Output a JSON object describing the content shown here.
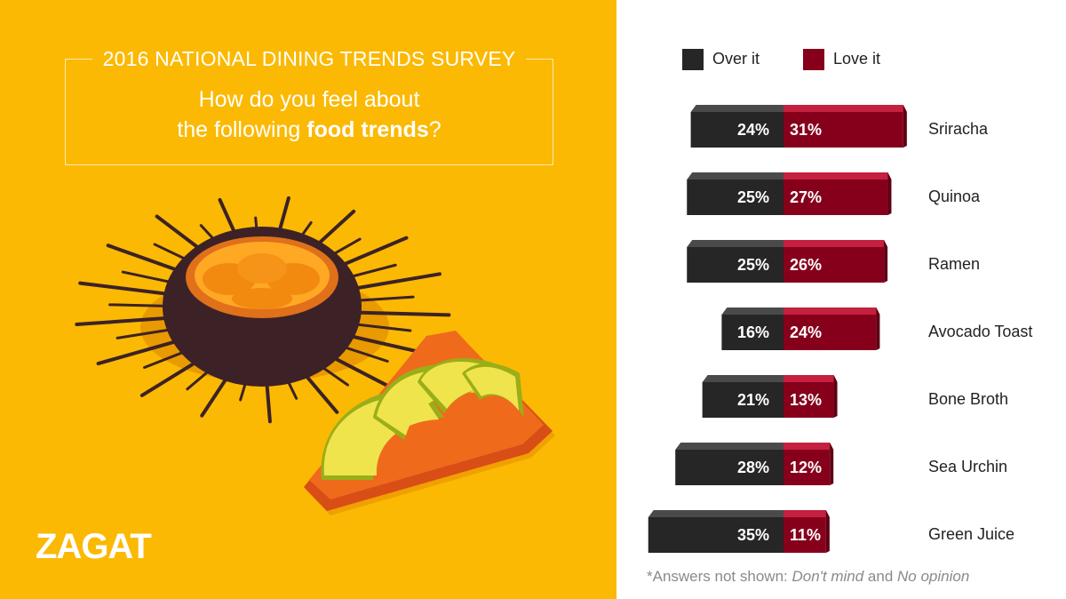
{
  "header": {
    "survey_title": "2016 NATIONAL DINING TRENDS SURVEY",
    "question_part1": "How do you feel about",
    "question_part2": "the following ",
    "question_bold": "food trends",
    "question_end": "?"
  },
  "logo": {
    "text": "ZAGAT"
  },
  "illustration": {
    "icons": [
      "sea-urchin-icon",
      "avocado-toast-icon"
    ]
  },
  "colors": {
    "background_left": "#fbb903",
    "over_it": "#262626",
    "over_it_top": "#4a4a4a",
    "love_it": "#86001c",
    "love_it_top": "#c4203f",
    "text_light": "#ffffff"
  },
  "chart_data": {
    "type": "bar",
    "orientation": "horizontal-diverging",
    "categories": [
      "Sriracha",
      "Quinoa",
      "Ramen",
      "Avocado Toast",
      "Bone Broth",
      "Sea Urchin",
      "Green Juice"
    ],
    "series": [
      {
        "name": "Over it",
        "values": [
          24,
          25,
          25,
          16,
          21,
          28,
          35
        ]
      },
      {
        "name": "Love it",
        "values": [
          31,
          27,
          26,
          24,
          13,
          12,
          11
        ]
      }
    ],
    "value_labels": {
      "over_it": [
        "24%",
        "25%",
        "25%",
        "16%",
        "21%",
        "28%",
        "35%"
      ],
      "love_it": [
        "31%",
        "27%",
        "26%",
        "24%",
        "13%",
        "12%",
        "11%"
      ]
    },
    "unit": "%",
    "legend_position": "top",
    "grid": false
  },
  "legend": {
    "over_it": "Over it",
    "love_it": "Love it"
  },
  "footnote": {
    "prefix": "*Answers not shown:  ",
    "item1": "Don't mind",
    "joiner": " and ",
    "item2": "No opinion"
  }
}
